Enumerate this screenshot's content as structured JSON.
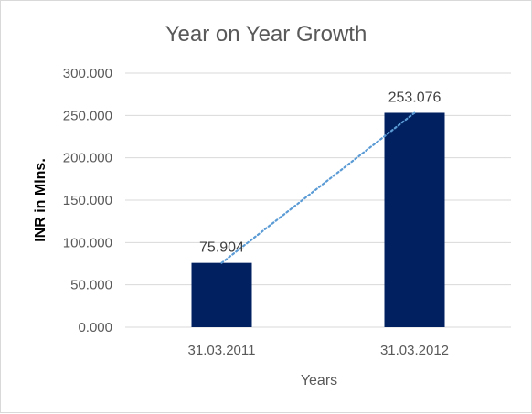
{
  "chart_data": {
    "type": "bar",
    "title": "Year on Year Growth",
    "xlabel": "Years",
    "ylabel": "INR in Mlns.",
    "categories": [
      "31.03.2011",
      "31.03.2012"
    ],
    "values": [
      75.904,
      253.076
    ],
    "data_labels": [
      "75.904",
      "253.076"
    ],
    "ylim": [
      0,
      300
    ],
    "yticks": [
      "0.000",
      "50.000",
      "100.000",
      "150.000",
      "200.000",
      "250.000",
      "300.000"
    ],
    "grid": true,
    "trendline": "linear",
    "colors": {
      "bar": "#002060",
      "trendline": "#5b9bd5",
      "grid": "#d9d9d9",
      "text": "#595959"
    }
  }
}
